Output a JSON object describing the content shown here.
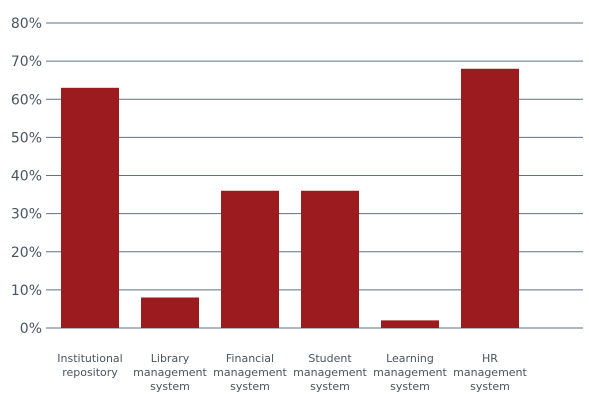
{
  "chart_data": {
    "type": "bar",
    "title": "",
    "xlabel": "",
    "ylabel": "",
    "categories": [
      "Institutional repository",
      "Library management system",
      "Financial management system",
      "Student management system",
      "Learning management system",
      "HR management system"
    ],
    "category_label_lines": [
      [
        "Institutional",
        "repository"
      ],
      [
        "Library",
        "management",
        "system"
      ],
      [
        "Financial",
        "management",
        "system"
      ],
      [
        "Student",
        "management",
        "system"
      ],
      [
        "Learning",
        "management",
        "system"
      ],
      [
        "HR",
        "management",
        "system"
      ]
    ],
    "values": [
      63,
      8,
      36,
      36,
      2,
      68
    ],
    "ylim": [
      0,
      80
    ],
    "yticks": [
      0,
      10,
      20,
      30,
      40,
      50,
      60,
      70,
      80
    ],
    "ytick_labels": [
      "0%",
      "10%",
      "20%",
      "30%",
      "40%",
      "50%",
      "60%",
      "70%",
      "80%"
    ],
    "grid": true,
    "legend": "none",
    "colors": {
      "bar": "#9b1b1f",
      "grid": "#5f7286",
      "text": "#4a5560"
    }
  }
}
